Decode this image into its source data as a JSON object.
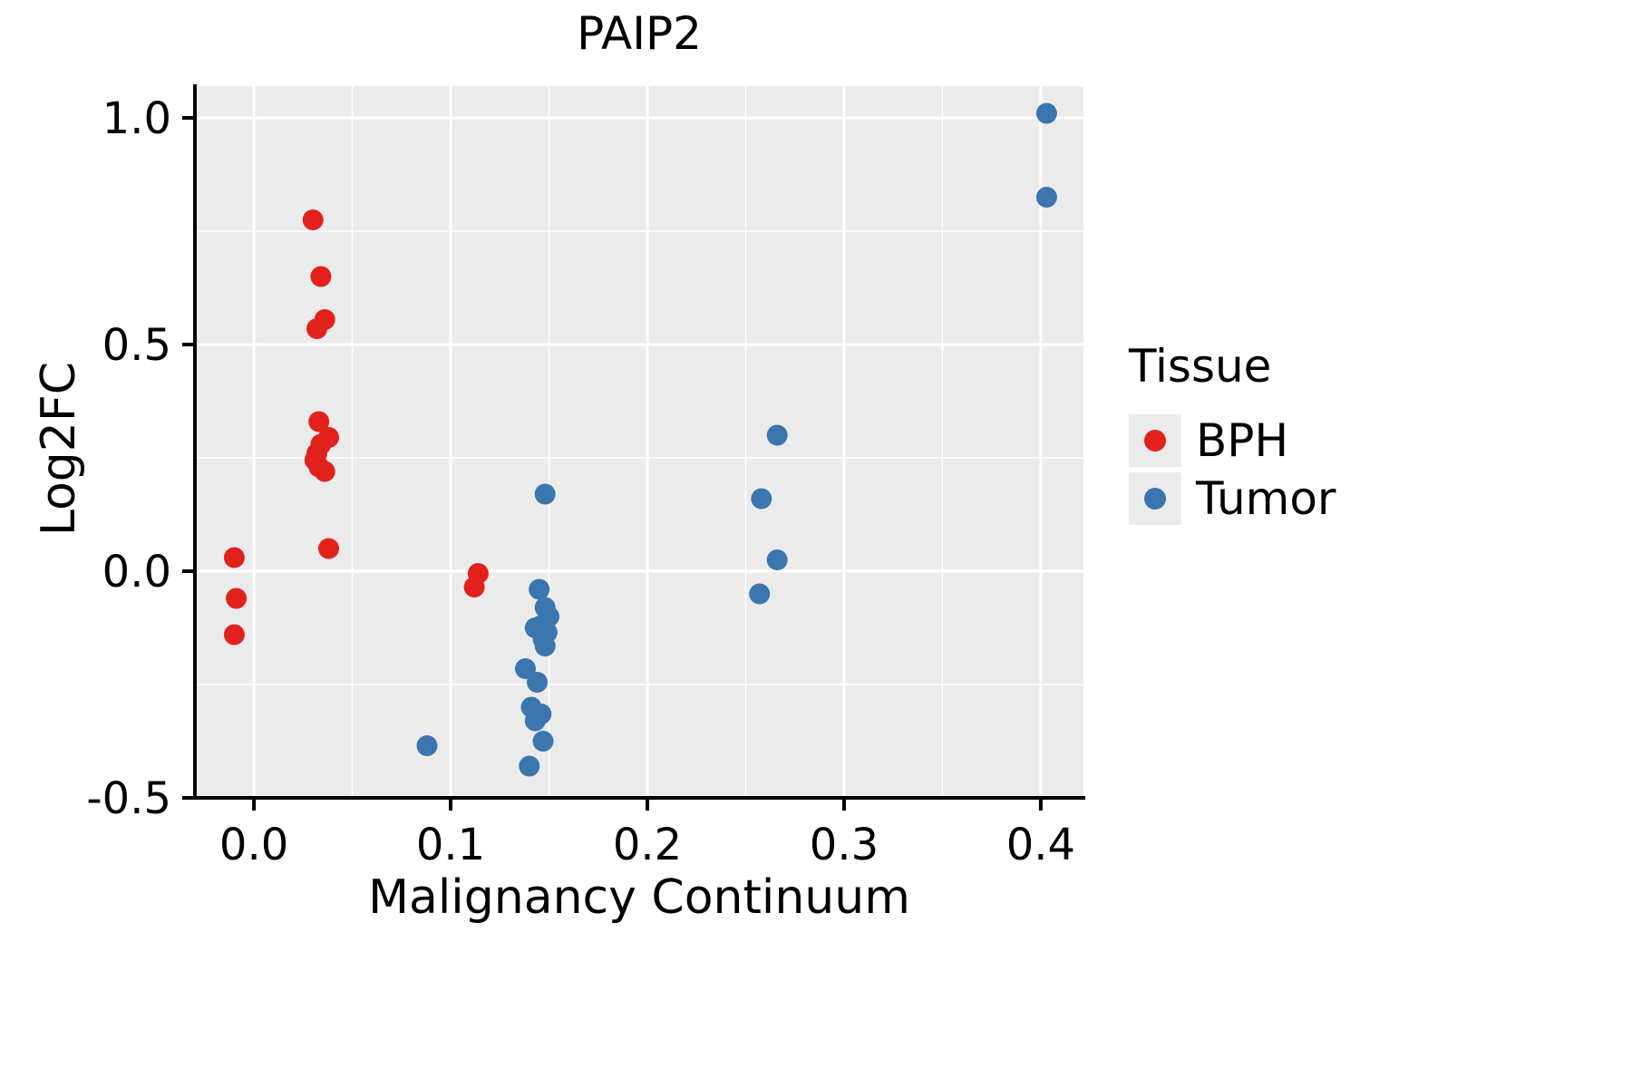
{
  "title": "PAIP2",
  "axes": {
    "x_label": "Malignancy Continuum",
    "y_label": "Log2FC"
  },
  "legend": {
    "title": "Tissue",
    "items": [
      {
        "label": "BPH",
        "color": "#E3211C"
      },
      {
        "label": "Tumor",
        "color": "#3B76AF"
      }
    ]
  },
  "chart_data": {
    "type": "scatter",
    "title": "PAIP2",
    "xlabel": "Malignancy Continuum",
    "ylabel": "Log2FC",
    "xlim": [
      -0.03,
      0.4217
    ],
    "ylim": [
      -0.5,
      1.07
    ],
    "xticks": [
      0.0,
      0.1,
      0.2,
      0.3,
      0.4
    ],
    "xtick_labels": [
      "0.0",
      "0.1",
      "0.2",
      "0.3",
      "0.4"
    ],
    "yticks": [
      -0.5,
      0.0,
      0.5,
      1.0
    ],
    "ytick_labels": [
      "-0.5",
      "0.0",
      "0.5",
      "1.0"
    ],
    "x_minor_ticks": [
      0.05,
      0.15,
      0.25,
      0.35
    ],
    "y_minor_ticks": [
      -0.25,
      0.25,
      0.75
    ],
    "grid": true,
    "legend_position": "right",
    "legend_title": "Tissue",
    "panel_background": "#EBEBEB",
    "grid_color": "#FFFFFF",
    "axis_color": "#000000",
    "series": [
      {
        "name": "BPH",
        "color": "#E3211C",
        "points": [
          [
            -0.01,
            0.03
          ],
          [
            -0.009,
            -0.06
          ],
          [
            -0.01,
            -0.14
          ],
          [
            0.03,
            0.775
          ],
          [
            0.034,
            0.65
          ],
          [
            0.036,
            0.555
          ],
          [
            0.032,
            0.535
          ],
          [
            0.033,
            0.33
          ],
          [
            0.038,
            0.295
          ],
          [
            0.034,
            0.28
          ],
          [
            0.032,
            0.26
          ],
          [
            0.031,
            0.245
          ],
          [
            0.033,
            0.23
          ],
          [
            0.036,
            0.22
          ],
          [
            0.038,
            0.05
          ],
          [
            0.114,
            -0.005
          ],
          [
            0.112,
            -0.035
          ]
        ]
      },
      {
        "name": "Tumor",
        "color": "#3B76AF",
        "points": [
          [
            0.088,
            -0.385
          ],
          [
            0.148,
            0.17
          ],
          [
            0.145,
            -0.04
          ],
          [
            0.148,
            -0.08
          ],
          [
            0.15,
            -0.1
          ],
          [
            0.146,
            -0.12
          ],
          [
            0.143,
            -0.125
          ],
          [
            0.149,
            -0.135
          ],
          [
            0.147,
            -0.15
          ],
          [
            0.148,
            -0.165
          ],
          [
            0.138,
            -0.215
          ],
          [
            0.144,
            -0.245
          ],
          [
            0.141,
            -0.3
          ],
          [
            0.146,
            -0.315
          ],
          [
            0.143,
            -0.33
          ],
          [
            0.147,
            -0.375
          ],
          [
            0.14,
            -0.43
          ],
          [
            0.257,
            -0.05
          ],
          [
            0.258,
            0.16
          ],
          [
            0.266,
            0.3
          ],
          [
            0.266,
            0.025
          ],
          [
            0.403,
            1.01
          ],
          [
            0.403,
            0.825
          ]
        ]
      }
    ]
  }
}
